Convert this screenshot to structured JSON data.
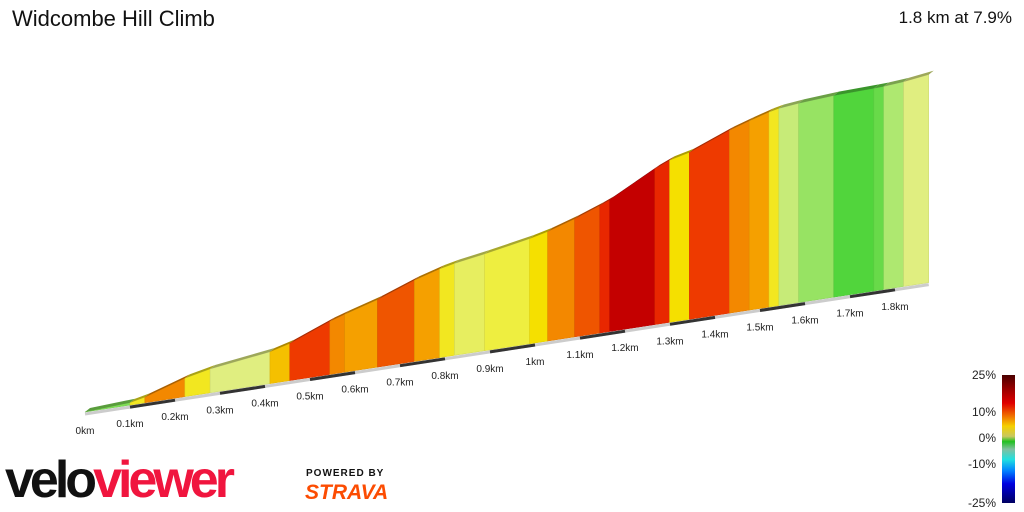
{
  "header": {
    "title": "Widcombe Hill Climb",
    "summary": "1.8 km at 7.9%"
  },
  "profile": {
    "km_labels": [
      "0km",
      "0.1km",
      "0.2km",
      "0.3km",
      "0.4km",
      "0.5km",
      "0.6km",
      "0.7km",
      "0.8km",
      "0.9km",
      "1km",
      "1.1km",
      "1.2km",
      "1.3km",
      "1.4km",
      "1.5km",
      "1.6km",
      "1.7km",
      "1.8km"
    ],
    "segments": [
      [
        0.1,
        2
      ],
      [
        0.033,
        8
      ],
      [
        0.089,
        12
      ],
      [
        0.056,
        8
      ],
      [
        0.133,
        5
      ],
      [
        0.044,
        10
      ],
      [
        0.089,
        15
      ],
      [
        0.033,
        12
      ],
      [
        0.073,
        11
      ],
      [
        0.082,
        14
      ],
      [
        0.056,
        11
      ],
      [
        0.033,
        8
      ],
      [
        0.067,
        6
      ],
      [
        0.1,
        7
      ],
      [
        0.04,
        9
      ],
      [
        0.06,
        12
      ],
      [
        0.056,
        14
      ],
      [
        0.022,
        16
      ],
      [
        0.1,
        20
      ],
      [
        0.033,
        16
      ],
      [
        0.044,
        9
      ],
      [
        0.089,
        15
      ],
      [
        0.044,
        12
      ],
      [
        0.044,
        11
      ],
      [
        0.022,
        8
      ],
      [
        0.044,
        4
      ],
      [
        0.078,
        2.5
      ],
      [
        0.089,
        1
      ],
      [
        0.022,
        1.5
      ],
      [
        0.044,
        3
      ],
      [
        0.056,
        5
      ]
    ]
  },
  "legend": {
    "labels": [
      "25%",
      "10%",
      "0%",
      "-10%",
      "-25%"
    ]
  },
  "branding": {
    "logo_velo": "velo",
    "logo_viewer": "viewer",
    "powered_by": "POWERED BY",
    "strava": "STRAVA"
  }
}
